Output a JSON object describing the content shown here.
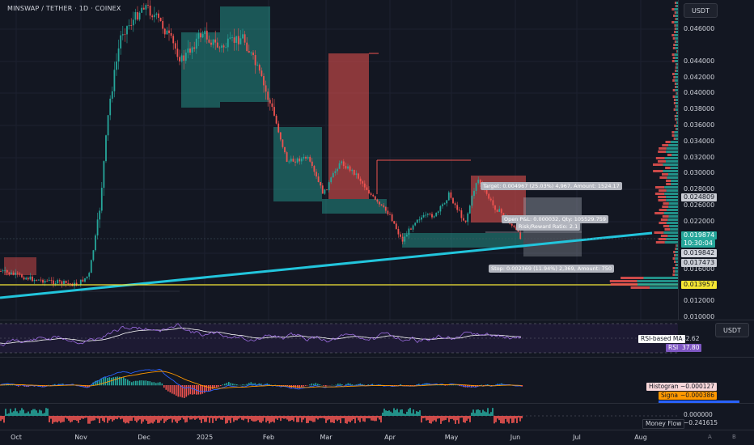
{
  "header": {
    "symbol_title": "MINSWAP / TETHER · 1D · COINEX",
    "currency_button": "USDT",
    "currency_button_2": "USDT"
  },
  "price_axis": {
    "labels": [
      "0.046000",
      "0.044000",
      "0.042000",
      "0.040000",
      "0.038000",
      "0.036000",
      "0.034000",
      "0.032000",
      "0.030000",
      "0.028000",
      "0.026000",
      "0.022000",
      "0.016000",
      "0.012000",
      "0.010000"
    ]
  },
  "price_tags": {
    "tp_level": "0.024809",
    "current_price": "0.019874",
    "countdown": "10:30:04",
    "price_2": "0.019842",
    "sl_level": "0.017473",
    "support_level": "0.013957"
  },
  "position": {
    "target_label": "Target: 0.004967 (25.03%) 4,967, Amount: 1524.17",
    "pnl_label": "Open P&L: 0.000032, Qty: 105529.759",
    "rr_label": "Risk/Reward Ratio: 2.1",
    "stop_label": "Stop: 0.002369 (11.94%) 2,369, Amount: 750"
  },
  "x_axis": {
    "labels": [
      "Oct",
      "Nov",
      "Dec",
      "2025",
      "Feb",
      "Mar",
      "Apr",
      "May",
      "Jun",
      "Jul",
      "Aug"
    ]
  },
  "rsi": {
    "ma_name": "RSI-based MA",
    "ma_value": "42.62",
    "name": "RSI",
    "value": "37.80"
  },
  "macd": {
    "histogram_name": "Histogram",
    "histogram_value": "−0.000127",
    "signal_name": "Signal",
    "signal_value": "−0.000386"
  },
  "money_flow": {
    "zero_value": "0.000000",
    "name": "Money Flow",
    "value": "−0.241615"
  },
  "colors": {
    "bg": "#131722",
    "up": "#26a69a",
    "down": "#ef5350",
    "trendline": "#22c5dc",
    "support": "#f5e633"
  },
  "chart_data": {
    "type": "candlestick",
    "symbol": "MINSWAP / TETHER",
    "interval": "1D",
    "exchange": "COINEX",
    "y_axis_range": [
      0.01,
      0.047
    ],
    "current_price": 0.019874,
    "key_levels": [
      0.024809,
      0.019842,
      0.017473,
      0.013957
    ]
  }
}
